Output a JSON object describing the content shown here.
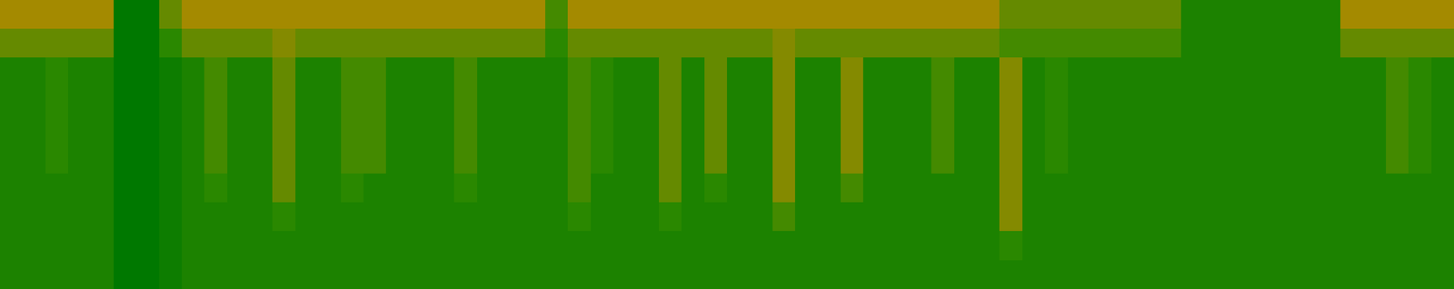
{
  "chart_data": {
    "type": "heatmap",
    "tick_labels": false,
    "color_range": [
      0,
      10
    ],
    "cells": [
      [
        7,
        7,
        7,
        7,
        7,
        0,
        0,
        5,
        7,
        7,
        7,
        7,
        7,
        7,
        7,
        7,
        7,
        7,
        7,
        7,
        7,
        7,
        7,
        7,
        4,
        7,
        7,
        7,
        7,
        7,
        7,
        7,
        7,
        7,
        7,
        7,
        7,
        7,
        7,
        7,
        7,
        7,
        7,
        7,
        5,
        5,
        5,
        5,
        5,
        5,
        5,
        5,
        2,
        2,
        2,
        2,
        2,
        2,
        2,
        7,
        7,
        7,
        7,
        7
      ],
      [
        5,
        5,
        5,
        5,
        5,
        0,
        0,
        3,
        5,
        5,
        5,
        5,
        6,
        5,
        5,
        5,
        5,
        5,
        5,
        5,
        5,
        5,
        5,
        5,
        3,
        5,
        5,
        5,
        5,
        5,
        5,
        5,
        5,
        5,
        6,
        5,
        5,
        5,
        5,
        5,
        5,
        5,
        5,
        5,
        4,
        4,
        4,
        4,
        4,
        4,
        4,
        4,
        2,
        2,
        2,
        2,
        2,
        2,
        2,
        5,
        5,
        5,
        5,
        5
      ],
      [
        2,
        2,
        3,
        2,
        2,
        0,
        0,
        1,
        2,
        4,
        2,
        2,
        5,
        2,
        2,
        4,
        4,
        2,
        2,
        2,
        4,
        2,
        2,
        2,
        2,
        4,
        3,
        2,
        2,
        5,
        2,
        5,
        2,
        2,
        6,
        2,
        2,
        6,
        2,
        2,
        2,
        4,
        2,
        2,
        6,
        2,
        3,
        2,
        2,
        2,
        2,
        2,
        2,
        2,
        2,
        2,
        2,
        2,
        2,
        2,
        2,
        4,
        3,
        2
      ],
      [
        2,
        2,
        3,
        2,
        2,
        0,
        0,
        1,
        2,
        4,
        2,
        2,
        5,
        2,
        2,
        4,
        4,
        2,
        2,
        2,
        4,
        2,
        2,
        2,
        2,
        4,
        3,
        2,
        2,
        5,
        2,
        5,
        2,
        2,
        6,
        2,
        2,
        6,
        2,
        2,
        2,
        4,
        2,
        2,
        6,
        2,
        3,
        2,
        2,
        2,
        2,
        2,
        2,
        2,
        2,
        2,
        2,
        2,
        2,
        2,
        2,
        4,
        3,
        2
      ],
      [
        2,
        2,
        3,
        2,
        2,
        0,
        0,
        1,
        2,
        4,
        2,
        2,
        5,
        2,
        2,
        4,
        4,
        2,
        2,
        2,
        4,
        2,
        2,
        2,
        2,
        4,
        3,
        2,
        2,
        5,
        2,
        5,
        2,
        2,
        6,
        2,
        2,
        6,
        2,
        2,
        2,
        4,
        2,
        2,
        6,
        2,
        3,
        2,
        2,
        2,
        2,
        2,
        2,
        2,
        2,
        2,
        2,
        2,
        2,
        2,
        2,
        4,
        3,
        2
      ],
      [
        2,
        2,
        3,
        2,
        2,
        0,
        0,
        1,
        2,
        4,
        2,
        2,
        5,
        2,
        2,
        4,
        4,
        2,
        2,
        2,
        4,
        2,
        2,
        2,
        2,
        4,
        3,
        2,
        2,
        5,
        2,
        5,
        2,
        2,
        6,
        2,
        2,
        6,
        2,
        2,
        2,
        4,
        2,
        2,
        6,
        2,
        3,
        2,
        2,
        2,
        2,
        2,
        2,
        2,
        2,
        2,
        2,
        2,
        2,
        2,
        2,
        4,
        3,
        2
      ],
      [
        2,
        2,
        2,
        2,
        2,
        0,
        0,
        1,
        2,
        3,
        2,
        2,
        5,
        2,
        2,
        3,
        2,
        2,
        2,
        2,
        3,
        2,
        2,
        2,
        2,
        4,
        2,
        2,
        2,
        5,
        2,
        3,
        2,
        2,
        6,
        2,
        2,
        4,
        2,
        2,
        2,
        2,
        2,
        2,
        6,
        2,
        2,
        2,
        2,
        2,
        2,
        2,
        2,
        2,
        2,
        2,
        2,
        2,
        2,
        2,
        2,
        2,
        2,
        2
      ],
      [
        2,
        2,
        2,
        2,
        2,
        0,
        0,
        1,
        2,
        2,
        2,
        2,
        3,
        2,
        2,
        2,
        2,
        2,
        2,
        2,
        2,
        2,
        2,
        2,
        2,
        3,
        2,
        2,
        2,
        3,
        2,
        2,
        2,
        2,
        4,
        2,
        2,
        2,
        2,
        2,
        2,
        2,
        2,
        2,
        6,
        2,
        2,
        2,
        2,
        2,
        2,
        2,
        2,
        2,
        2,
        2,
        2,
        2,
        2,
        2,
        2,
        2,
        2,
        2
      ],
      [
        2,
        2,
        2,
        2,
        2,
        0,
        0,
        1,
        2,
        2,
        2,
        2,
        2,
        2,
        2,
        2,
        2,
        2,
        2,
        2,
        2,
        2,
        2,
        2,
        2,
        2,
        2,
        2,
        2,
        2,
        2,
        2,
        2,
        2,
        2,
        2,
        2,
        2,
        2,
        2,
        2,
        2,
        2,
        2,
        3,
        2,
        2,
        2,
        2,
        2,
        2,
        2,
        2,
        2,
        2,
        2,
        2,
        2,
        2,
        2,
        2,
        2,
        2,
        2
      ],
      [
        2,
        2,
        2,
        2,
        2,
        0,
        0,
        1,
        2,
        2,
        2,
        2,
        2,
        2,
        2,
        2,
        2,
        2,
        2,
        2,
        2,
        2,
        2,
        2,
        2,
        2,
        2,
        2,
        2,
        2,
        2,
        2,
        2,
        2,
        2,
        2,
        2,
        2,
        2,
        2,
        2,
        2,
        2,
        2,
        2,
        2,
        2,
        2,
        2,
        2,
        2,
        2,
        2,
        2,
        2,
        2,
        2,
        2,
        2,
        2,
        2,
        2,
        2,
        2
      ]
    ]
  }
}
